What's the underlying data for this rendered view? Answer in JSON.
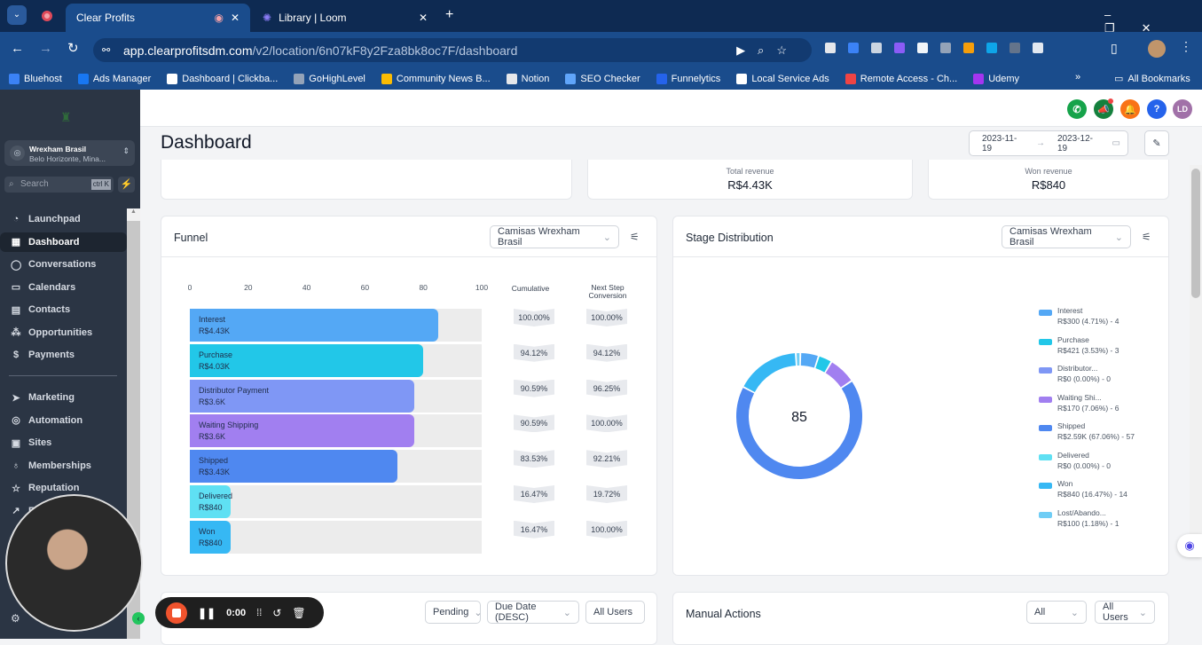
{
  "browser": {
    "tabs": [
      {
        "label": "Clear Profits"
      },
      {
        "label": "Library | Loom"
      }
    ],
    "url_host": "app.clearprofitsdm.com",
    "url_path": "/v2/location/6n07kF8y2Fza8bk8oc7F/dashboard",
    "bookmarks": [
      {
        "label": "Bluehost",
        "color": "#3b82f6"
      },
      {
        "label": "Ads Manager",
        "color": "#1877f2"
      },
      {
        "label": "Dashboard | Clickba...",
        "color": "#ffffff"
      },
      {
        "label": "GoHighLevel",
        "color": "#94a3b8"
      },
      {
        "label": "Community News B...",
        "color": "#fbbc04"
      },
      {
        "label": "Notion",
        "color": "#e5e7eb"
      },
      {
        "label": "SEO Checker",
        "color": "#60a5fa"
      },
      {
        "label": "Funnelytics",
        "color": "#2563eb"
      },
      {
        "label": "Local Service Ads",
        "color": "#ffffff"
      },
      {
        "label": "Remote Access - Ch...",
        "color": "#ef4444"
      },
      {
        "label": "Udemy",
        "color": "#a435f0"
      }
    ],
    "all_bookmarks": "All Bookmarks"
  },
  "sidebar": {
    "account_name": "Wrexham Brasil",
    "account_location": "Belo Horizonte, Mina...",
    "search_placeholder": "Search",
    "shortcut": "ctrl K",
    "items": [
      {
        "label": "Launchpad",
        "icon": "◔"
      },
      {
        "label": "Dashboard",
        "icon": "▦"
      },
      {
        "label": "Conversations",
        "icon": "◯"
      },
      {
        "label": "Calendars",
        "icon": "▭"
      },
      {
        "label": "Contacts",
        "icon": "▤"
      },
      {
        "label": "Opportunities",
        "icon": "⁂"
      },
      {
        "label": "Payments",
        "icon": "$"
      }
    ],
    "items2": [
      {
        "label": "Marketing",
        "icon": "➤"
      },
      {
        "label": "Automation",
        "icon": "◎"
      },
      {
        "label": "Sites",
        "icon": "▣"
      },
      {
        "label": "Memberships",
        "icon": "♁"
      },
      {
        "label": "Reputation",
        "icon": "☆"
      },
      {
        "label": "R",
        "icon": "↗"
      }
    ],
    "settings_initial": "S"
  },
  "header": {
    "avatar": "LD"
  },
  "page": {
    "title": "Dashboard",
    "date_from": "2023-11-19",
    "date_to": "2023-12-19"
  },
  "stats": [
    {
      "label": "Total revenue",
      "value": "R$4.43K"
    },
    {
      "label": "Won revenue",
      "value": "R$840"
    }
  ],
  "funnel": {
    "title": "Funnel",
    "pipeline": "Camisas Wrexham Brasil",
    "axis": [
      "0",
      "20",
      "40",
      "60",
      "80",
      "100"
    ],
    "cumulative_label": "Cumulative",
    "next_label": "Next Step Conversion",
    "stages": [
      {
        "name": "Interest",
        "value": "R$4.43K",
        "count": 85,
        "color": "#54a8f5",
        "cum": "100.00%",
        "next": "100.00%"
      },
      {
        "name": "Purchase",
        "value": "R$4.03K",
        "count": 80,
        "color": "#22c7e8",
        "cum": "94.12%",
        "next": "94.12%"
      },
      {
        "name": "Distributor Payment",
        "value": "R$3.6K",
        "count": 77,
        "color": "#7f97f5",
        "cum": "90.59%",
        "next": "96.25%"
      },
      {
        "name": "Waiting Shipping",
        "value": "R$3.6K",
        "count": 77,
        "color": "#a17ff0",
        "cum": "90.59%",
        "next": "100.00%"
      },
      {
        "name": "Shipped",
        "value": "R$3.43K",
        "count": 71,
        "color": "#4f88f0",
        "cum": "83.53%",
        "next": "92.21%"
      },
      {
        "name": "Delivered",
        "value": "R$840",
        "count": 14,
        "color": "#5fe0f3",
        "cum": "16.47%",
        "next": "19.72%"
      },
      {
        "name": "Won",
        "value": "R$840",
        "count": 14,
        "color": "#36b8f4",
        "cum": "16.47%",
        "next": "100.00%"
      }
    ]
  },
  "chart_data": {
    "type": "pie",
    "title": "Stage Distribution",
    "center_label": "85",
    "slices": [
      {
        "name": "Interest",
        "label": "R$300 (4.71%) - 4",
        "pct": 4.71,
        "color": "#54a8f5"
      },
      {
        "name": "Purchase",
        "label": "R$421 (3.53%) - 3",
        "pct": 3.53,
        "color": "#22c7e8"
      },
      {
        "name": "Distributor...",
        "label": "R$0 (0.00%) - 0",
        "pct": 0,
        "color": "#7f97f5"
      },
      {
        "name": "Waiting Shi...",
        "label": "R$170 (7.06%) - 6",
        "pct": 7.06,
        "color": "#a17ff0"
      },
      {
        "name": "Shipped",
        "label": "R$2.59K (67.06%) - 57",
        "pct": 67.06,
        "color": "#4f88f0"
      },
      {
        "name": "Delivered",
        "label": "R$0 (0.00%) - 0",
        "pct": 0,
        "color": "#5fe0f3"
      },
      {
        "name": "Won",
        "label": "R$840 (16.47%) - 14",
        "pct": 16.47,
        "color": "#36b8f4"
      },
      {
        "name": "Lost/Abando...",
        "label": "R$100 (1.18%) - 1",
        "pct": 1.18,
        "color": "#6fcdf5"
      }
    ],
    "pipeline": "Camisas Wrexham Brasil"
  },
  "tasks": {
    "status": "Pending",
    "sort": "Due Date (DESC)",
    "users": "All Users"
  },
  "manual": {
    "title": "Manual Actions",
    "filter": "All",
    "users": "All Users"
  },
  "loom": {
    "time": "0:00"
  }
}
